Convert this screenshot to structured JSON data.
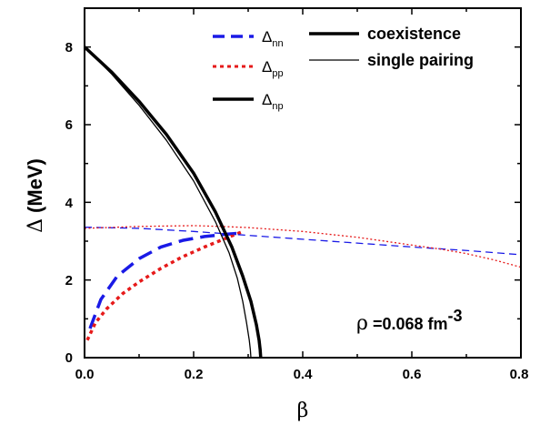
{
  "chart_data": {
    "type": "line",
    "xlabel": "β",
    "ylabel_symbol": "Δ",
    "ylabel_unit": "(MeV)",
    "xlim": [
      0.0,
      0.8
    ],
    "ylim": [
      0,
      9
    ],
    "x_ticks": [
      "0.0",
      "0.2",
      "0.4",
      "0.6",
      "0.8"
    ],
    "y_ticks": [
      "0",
      "2",
      "4",
      "6",
      "8"
    ],
    "grid": false,
    "legend_location": "top-center",
    "legend_left": [
      {
        "base": "Δ",
        "sub": "nn",
        "color": "#1a1ae6",
        "style": "dashed"
      },
      {
        "base": "Δ",
        "sub": "pp",
        "color": "#e61a1a",
        "style": "dotted"
      },
      {
        "base": "Δ",
        "sub": "np",
        "color": "#000000",
        "style": "solid"
      }
    ],
    "legend_right": [
      {
        "label": "coexistence",
        "weight": "thick"
      },
      {
        "label": "single pairing",
        "weight": "thin"
      }
    ],
    "annotation": {
      "greek": "ρ",
      "value": " =0.068 fm",
      "sup": "-3"
    },
    "series": [
      {
        "id": "nn-coexistence",
        "color": "#1a1ae6",
        "style": "dashed",
        "width": "thick",
        "x": [
          0.01,
          0.03,
          0.06,
          0.1,
          0.14,
          0.18,
          0.22,
          0.26,
          0.28
        ],
        "y": [
          0.75,
          1.5,
          2.1,
          2.55,
          2.85,
          3.02,
          3.12,
          3.18,
          3.2
        ]
      },
      {
        "id": "pp-coexistence",
        "color": "#e61a1a",
        "style": "dotted",
        "width": "thick",
        "x": [
          0.005,
          0.02,
          0.04,
          0.07,
          0.1,
          0.14,
          0.18,
          0.22,
          0.26,
          0.29
        ],
        "y": [
          0.45,
          0.9,
          1.25,
          1.65,
          1.95,
          2.3,
          2.6,
          2.85,
          3.08,
          3.25
        ]
      },
      {
        "id": "nn-single",
        "color": "#1a1ae6",
        "style": "dashed",
        "width": "thin",
        "x": [
          0.0,
          0.1,
          0.2,
          0.3,
          0.4,
          0.5,
          0.6,
          0.7,
          0.8
        ],
        "y": [
          3.36,
          3.33,
          3.25,
          3.15,
          3.05,
          2.95,
          2.85,
          2.76,
          2.65
        ]
      },
      {
        "id": "pp-single",
        "color": "#e61a1a",
        "style": "dotted",
        "width": "thin",
        "x": [
          0.0,
          0.1,
          0.2,
          0.25,
          0.3,
          0.4,
          0.5,
          0.6,
          0.65,
          0.7,
          0.75,
          0.8
        ],
        "y": [
          3.33,
          3.38,
          3.4,
          3.38,
          3.35,
          3.25,
          3.1,
          2.9,
          2.8,
          2.68,
          2.52,
          2.33
        ]
      },
      {
        "id": "np-coexistence",
        "color": "#000000",
        "style": "solid",
        "width": "thick",
        "x": [
          0.0,
          0.05,
          0.1,
          0.15,
          0.2,
          0.24,
          0.27,
          0.29,
          0.305,
          0.315,
          0.32,
          0.322,
          0.323
        ],
        "y": [
          8.0,
          7.35,
          6.6,
          5.75,
          4.75,
          3.75,
          2.85,
          2.1,
          1.45,
          0.85,
          0.45,
          0.2,
          0.0
        ]
      },
      {
        "id": "np-single",
        "color": "#000000",
        "style": "solid",
        "width": "thin",
        "x": [
          0.0,
          0.05,
          0.1,
          0.15,
          0.2,
          0.24,
          0.265,
          0.28,
          0.29,
          0.297,
          0.302,
          0.304,
          0.305
        ],
        "y": [
          8.0,
          7.3,
          6.5,
          5.6,
          4.55,
          3.5,
          2.7,
          2.05,
          1.45,
          0.9,
          0.45,
          0.2,
          0.0
        ]
      }
    ]
  }
}
